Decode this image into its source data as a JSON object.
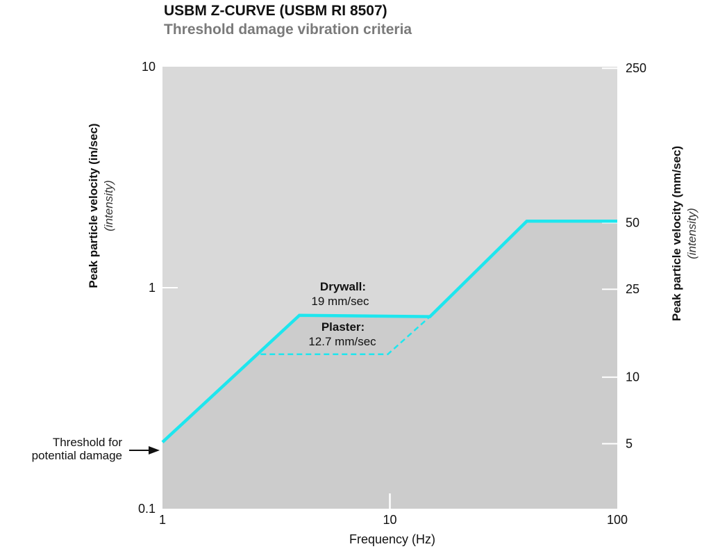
{
  "title": "USBM Z-CURVE (USBM RI 8507)",
  "subtitle": "Threshold damage vibration criteria",
  "chart_data": {
    "type": "line",
    "xlabel": "Frequency (Hz)",
    "ylabel": "Peak particle velocity (in/sec)",
    "ylabel_sub": "(intensity)",
    "y2label": "Peak particle velocity (mm/sec)",
    "y2label_sub": "(intensity)",
    "x_scale": "log",
    "y_scale": "log",
    "xlim": [
      1,
      100
    ],
    "ylim": [
      0.1,
      10
    ],
    "x_ticks": [
      "1",
      "10",
      "100"
    ],
    "y_ticks": [
      "0.1",
      "1",
      "10"
    ],
    "y2_ticks": [
      "5",
      "10",
      "25",
      "50",
      "250"
    ],
    "series": [
      {
        "name": "Drywall",
        "style": "solid",
        "color": "#1ee6ee",
        "x": [
          1,
          4,
          15,
          40,
          100
        ],
        "y": [
          0.2,
          0.75,
          0.74,
          2.0,
          2.0
        ]
      },
      {
        "name": "Plaster",
        "style": "dashed",
        "color": "#1ee6ee",
        "x": [
          2.7,
          9.8,
          15
        ],
        "y": [
          0.5,
          0.5,
          0.74
        ]
      }
    ],
    "annotations": {
      "drywall_title": "Drywall:",
      "drywall_value": "19 mm/sec",
      "plaster_title": "Plaster:",
      "plaster_value": "12.7 mm/sec",
      "threshold_line1": "Threshold for",
      "threshold_line2": "potential damage"
    },
    "colors": {
      "plot_background": "#d9d9d9",
      "below_curve": "#cccccc",
      "curve": "#1ee6ee"
    }
  }
}
